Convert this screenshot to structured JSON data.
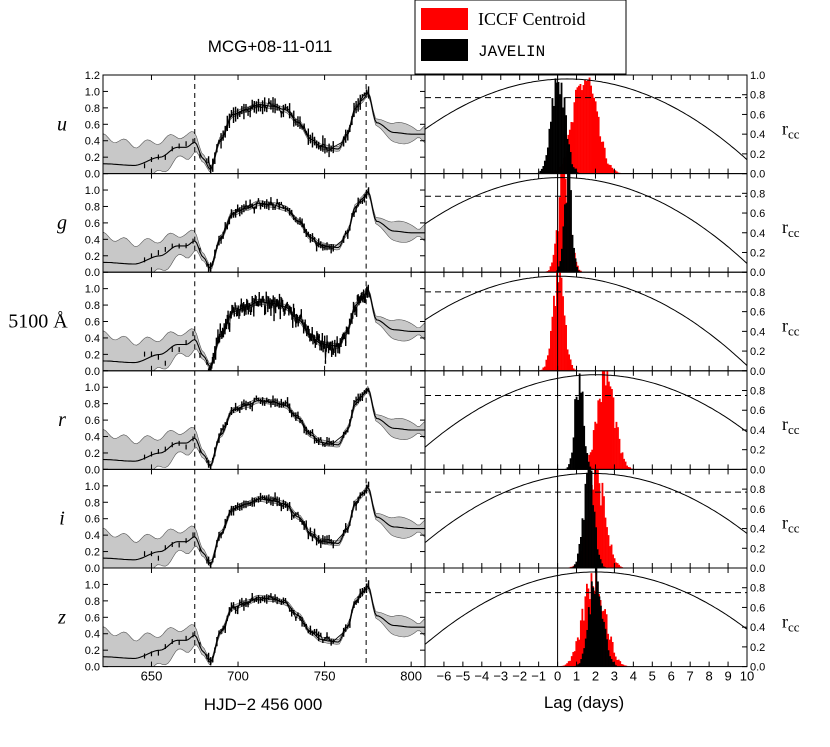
{
  "chart_data": {
    "type": "multi-panel light curves + lag histograms",
    "title": "MCG+08-11-011",
    "xlabel_left": "HJD−2 456 000",
    "xlabel_right": "Lag (days)",
    "ylabel_right": "r",
    "ylabel_right_sub": "cc",
    "left_xlim": [
      622,
      808
    ],
    "left_xticks": [
      650,
      700,
      750,
      800
    ],
    "left_ylim": [
      0.0,
      1.2
    ],
    "left_yticks": [
      "0.0",
      "0.2",
      "0.4",
      "0.6",
      "0.8",
      "1.0",
      "1.2"
    ],
    "left_vlines": [
      675,
      774
    ],
    "right_xlim": [
      -7,
      10
    ],
    "right_xticks": [
      "−6",
      "−5",
      "−4",
      "−3",
      "−2",
      "−1",
      "0",
      "1",
      "2",
      "3",
      "4",
      "5",
      "6",
      "7",
      "8",
      "9",
      "10"
    ],
    "right_ylim": [
      0.0,
      1.0
    ],
    "right_yticks": [
      "0.0",
      "0.2",
      "0.4",
      "0.6",
      "0.8",
      "1.0"
    ],
    "right_vline": 0,
    "legend": [
      {
        "label": "ICCF Centroid",
        "color": "#ff0000"
      },
      {
        "label": "JAVELIN",
        "color": "#000000"
      }
    ],
    "bands": [
      {
        "name": "u",
        "italic": true,
        "iccf_lag": 1.4,
        "iccf_sigma": 0.6,
        "jav_lag": 0.0,
        "jav_sigma": 0.35,
        "ccf_peak_lag": 0.5,
        "ccf_peak": 0.96,
        "threshold": 0.77
      },
      {
        "name": "g",
        "italic": true,
        "iccf_lag": 0.3,
        "iccf_sigma": 0.3,
        "jav_lag": 0.5,
        "jav_sigma": 0.2,
        "ccf_peak_lag": 0.2,
        "ccf_peak": 0.96,
        "threshold": 0.77
      },
      {
        "name": "5100 Å",
        "italic": false,
        "iccf_lag": 0.0,
        "iccf_sigma": 0.3,
        "jav_lag": null,
        "jav_sigma": null,
        "ccf_peak_lag": 0.0,
        "ccf_peak": 0.96,
        "threshold": 0.8
      },
      {
        "name": "r",
        "italic": true,
        "iccf_lag": 2.5,
        "iccf_sigma": 0.45,
        "jav_lag": 1.1,
        "jav_sigma": 0.22,
        "ccf_peak_lag": 2.0,
        "ccf_peak": 0.96,
        "threshold": 0.75
      },
      {
        "name": "i",
        "italic": true,
        "iccf_lag": 2.0,
        "iccf_sigma": 0.45,
        "jav_lag": 1.6,
        "jav_sigma": 0.28,
        "ccf_peak_lag": 1.8,
        "ccf_peak": 0.96,
        "threshold": 0.77
      },
      {
        "name": "z",
        "italic": true,
        "iccf_lag": 1.9,
        "iccf_sigma": 0.55,
        "jav_lag": 2.0,
        "jav_sigma": 0.35,
        "ccf_peak_lag": 2.0,
        "ccf_peak": 0.96,
        "threshold": 0.75
      }
    ],
    "light_curve_shape": {
      "hjd": [
        622,
        640,
        655,
        665,
        670,
        675,
        680,
        684,
        690,
        697,
        705,
        712,
        720,
        727,
        735,
        742,
        748,
        753,
        758,
        763,
        768,
        772,
        775,
        780,
        790,
        800,
        808
      ],
      "flux": [
        0.12,
        0.1,
        0.2,
        0.32,
        0.32,
        0.38,
        0.18,
        0.05,
        0.42,
        0.72,
        0.78,
        0.84,
        0.82,
        0.78,
        0.62,
        0.42,
        0.33,
        0.31,
        0.3,
        0.48,
        0.8,
        0.9,
        0.98,
        0.62,
        0.5,
        0.48,
        0.48
      ]
    }
  }
}
